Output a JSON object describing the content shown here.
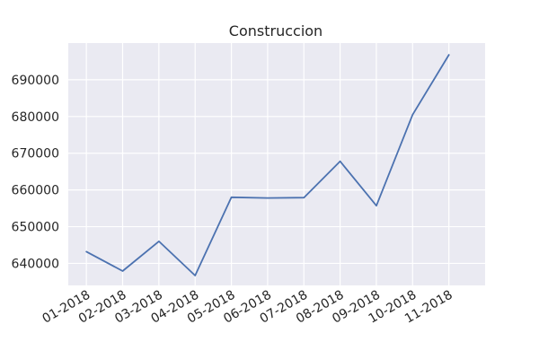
{
  "chart_data": {
    "type": "line",
    "title": "Construccion",
    "xlabel": "",
    "ylabel": "",
    "categories": [
      "01-2018",
      "02-2018",
      "03-2018",
      "04-2018",
      "05-2018",
      "06-2018",
      "07-2018",
      "08-2018",
      "09-2018",
      "10-2018",
      "11-2018"
    ],
    "series": [
      {
        "values": [
          643200,
          637900,
          646000,
          636700,
          658000,
          657800,
          657900,
          667800,
          655700,
          680500,
          696800
        ]
      }
    ],
    "yticks": [
      640000,
      650000,
      660000,
      670000,
      680000,
      690000
    ],
    "ylim": [
      634000,
      700000
    ],
    "xlim": [
      -0.5,
      11.0
    ],
    "grid": true,
    "colors": {
      "plot_background": "#eaeaf2",
      "grid": "#ffffff",
      "line": "#4c72b0"
    }
  }
}
